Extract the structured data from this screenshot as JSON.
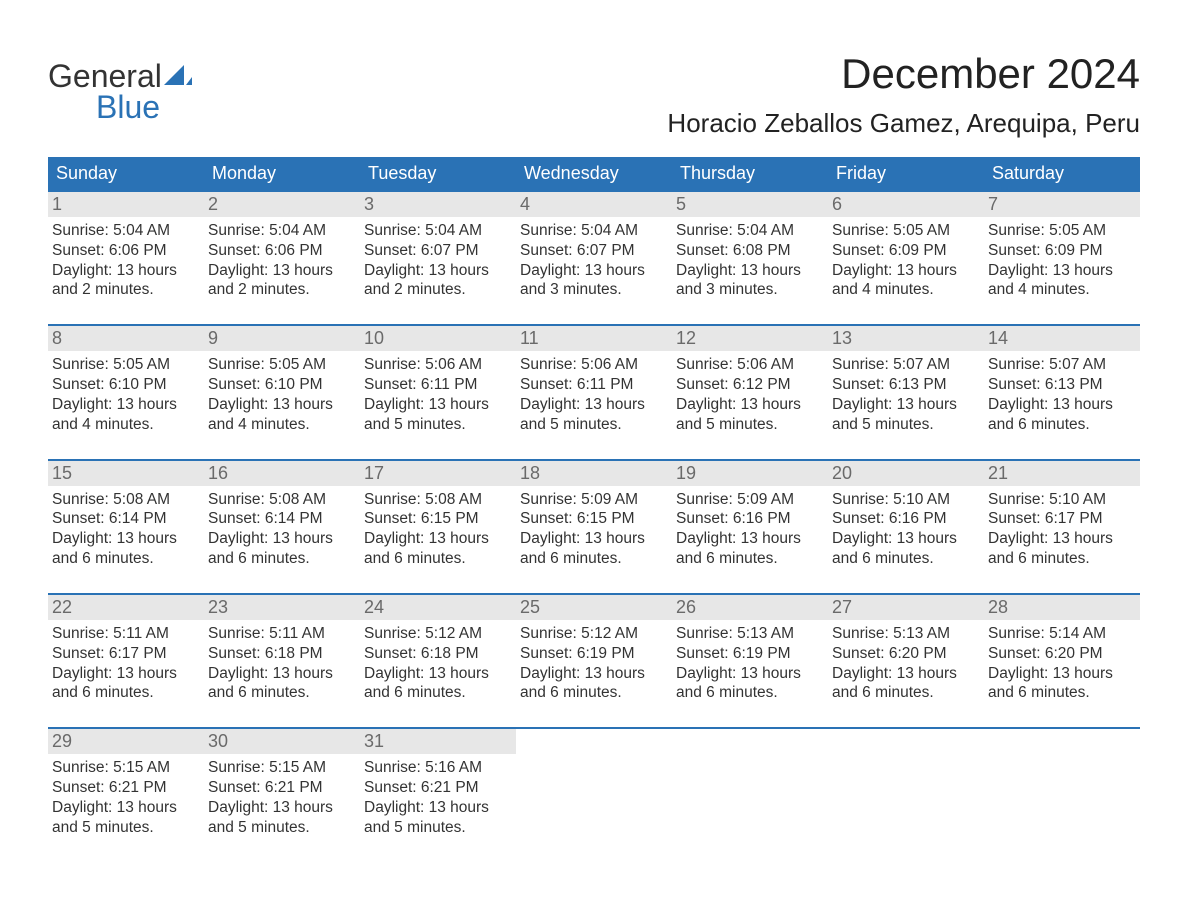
{
  "colors": {
    "header_bg": "#2a72b5",
    "header_text": "#ffffff",
    "daynum_bg": "#e7e7e7",
    "daynum_text": "#6a6a6a",
    "body_text": "#333333",
    "week_border": "#2a72b5",
    "logo_blue": "#2a72b5",
    "page_bg": "#ffffff"
  },
  "logo": {
    "word1": "General",
    "word2": "Blue"
  },
  "title": "December 2024",
  "location": "Horacio Zeballos Gamez, Arequipa, Peru",
  "day_headers": [
    "Sunday",
    "Monday",
    "Tuesday",
    "Wednesday",
    "Thursday",
    "Friday",
    "Saturday"
  ],
  "typography": {
    "title_fontsize": 42,
    "location_fontsize": 26,
    "dow_fontsize": 18,
    "daynum_fontsize": 18,
    "body_fontsize": 15.5
  },
  "weeks": [
    [
      {
        "num": "1",
        "sunrise": "Sunrise: 5:04 AM",
        "sunset": "Sunset: 6:06 PM",
        "dl1": "Daylight: 13 hours",
        "dl2": "and 2 minutes."
      },
      {
        "num": "2",
        "sunrise": "Sunrise: 5:04 AM",
        "sunset": "Sunset: 6:06 PM",
        "dl1": "Daylight: 13 hours",
        "dl2": "and 2 minutes."
      },
      {
        "num": "3",
        "sunrise": "Sunrise: 5:04 AM",
        "sunset": "Sunset: 6:07 PM",
        "dl1": "Daylight: 13 hours",
        "dl2": "and 2 minutes."
      },
      {
        "num": "4",
        "sunrise": "Sunrise: 5:04 AM",
        "sunset": "Sunset: 6:07 PM",
        "dl1": "Daylight: 13 hours",
        "dl2": "and 3 minutes."
      },
      {
        "num": "5",
        "sunrise": "Sunrise: 5:04 AM",
        "sunset": "Sunset: 6:08 PM",
        "dl1": "Daylight: 13 hours",
        "dl2": "and 3 minutes."
      },
      {
        "num": "6",
        "sunrise": "Sunrise: 5:05 AM",
        "sunset": "Sunset: 6:09 PM",
        "dl1": "Daylight: 13 hours",
        "dl2": "and 4 minutes."
      },
      {
        "num": "7",
        "sunrise": "Sunrise: 5:05 AM",
        "sunset": "Sunset: 6:09 PM",
        "dl1": "Daylight: 13 hours",
        "dl2": "and 4 minutes."
      }
    ],
    [
      {
        "num": "8",
        "sunrise": "Sunrise: 5:05 AM",
        "sunset": "Sunset: 6:10 PM",
        "dl1": "Daylight: 13 hours",
        "dl2": "and 4 minutes."
      },
      {
        "num": "9",
        "sunrise": "Sunrise: 5:05 AM",
        "sunset": "Sunset: 6:10 PM",
        "dl1": "Daylight: 13 hours",
        "dl2": "and 4 minutes."
      },
      {
        "num": "10",
        "sunrise": "Sunrise: 5:06 AM",
        "sunset": "Sunset: 6:11 PM",
        "dl1": "Daylight: 13 hours",
        "dl2": "and 5 minutes."
      },
      {
        "num": "11",
        "sunrise": "Sunrise: 5:06 AM",
        "sunset": "Sunset: 6:11 PM",
        "dl1": "Daylight: 13 hours",
        "dl2": "and 5 minutes."
      },
      {
        "num": "12",
        "sunrise": "Sunrise: 5:06 AM",
        "sunset": "Sunset: 6:12 PM",
        "dl1": "Daylight: 13 hours",
        "dl2": "and 5 minutes."
      },
      {
        "num": "13",
        "sunrise": "Sunrise: 5:07 AM",
        "sunset": "Sunset: 6:13 PM",
        "dl1": "Daylight: 13 hours",
        "dl2": "and 5 minutes."
      },
      {
        "num": "14",
        "sunrise": "Sunrise: 5:07 AM",
        "sunset": "Sunset: 6:13 PM",
        "dl1": "Daylight: 13 hours",
        "dl2": "and 6 minutes."
      }
    ],
    [
      {
        "num": "15",
        "sunrise": "Sunrise: 5:08 AM",
        "sunset": "Sunset: 6:14 PM",
        "dl1": "Daylight: 13 hours",
        "dl2": "and 6 minutes."
      },
      {
        "num": "16",
        "sunrise": "Sunrise: 5:08 AM",
        "sunset": "Sunset: 6:14 PM",
        "dl1": "Daylight: 13 hours",
        "dl2": "and 6 minutes."
      },
      {
        "num": "17",
        "sunrise": "Sunrise: 5:08 AM",
        "sunset": "Sunset: 6:15 PM",
        "dl1": "Daylight: 13 hours",
        "dl2": "and 6 minutes."
      },
      {
        "num": "18",
        "sunrise": "Sunrise: 5:09 AM",
        "sunset": "Sunset: 6:15 PM",
        "dl1": "Daylight: 13 hours",
        "dl2": "and 6 minutes."
      },
      {
        "num": "19",
        "sunrise": "Sunrise: 5:09 AM",
        "sunset": "Sunset: 6:16 PM",
        "dl1": "Daylight: 13 hours",
        "dl2": "and 6 minutes."
      },
      {
        "num": "20",
        "sunrise": "Sunrise: 5:10 AM",
        "sunset": "Sunset: 6:16 PM",
        "dl1": "Daylight: 13 hours",
        "dl2": "and 6 minutes."
      },
      {
        "num": "21",
        "sunrise": "Sunrise: 5:10 AM",
        "sunset": "Sunset: 6:17 PM",
        "dl1": "Daylight: 13 hours",
        "dl2": "and 6 minutes."
      }
    ],
    [
      {
        "num": "22",
        "sunrise": "Sunrise: 5:11 AM",
        "sunset": "Sunset: 6:17 PM",
        "dl1": "Daylight: 13 hours",
        "dl2": "and 6 minutes."
      },
      {
        "num": "23",
        "sunrise": "Sunrise: 5:11 AM",
        "sunset": "Sunset: 6:18 PM",
        "dl1": "Daylight: 13 hours",
        "dl2": "and 6 minutes."
      },
      {
        "num": "24",
        "sunrise": "Sunrise: 5:12 AM",
        "sunset": "Sunset: 6:18 PM",
        "dl1": "Daylight: 13 hours",
        "dl2": "and 6 minutes."
      },
      {
        "num": "25",
        "sunrise": "Sunrise: 5:12 AM",
        "sunset": "Sunset: 6:19 PM",
        "dl1": "Daylight: 13 hours",
        "dl2": "and 6 minutes."
      },
      {
        "num": "26",
        "sunrise": "Sunrise: 5:13 AM",
        "sunset": "Sunset: 6:19 PM",
        "dl1": "Daylight: 13 hours",
        "dl2": "and 6 minutes."
      },
      {
        "num": "27",
        "sunrise": "Sunrise: 5:13 AM",
        "sunset": "Sunset: 6:20 PM",
        "dl1": "Daylight: 13 hours",
        "dl2": "and 6 minutes."
      },
      {
        "num": "28",
        "sunrise": "Sunrise: 5:14 AM",
        "sunset": "Sunset: 6:20 PM",
        "dl1": "Daylight: 13 hours",
        "dl2": "and 6 minutes."
      }
    ],
    [
      {
        "num": "29",
        "sunrise": "Sunrise: 5:15 AM",
        "sunset": "Sunset: 6:21 PM",
        "dl1": "Daylight: 13 hours",
        "dl2": "and 5 minutes."
      },
      {
        "num": "30",
        "sunrise": "Sunrise: 5:15 AM",
        "sunset": "Sunset: 6:21 PM",
        "dl1": "Daylight: 13 hours",
        "dl2": "and 5 minutes."
      },
      {
        "num": "31",
        "sunrise": "Sunrise: 5:16 AM",
        "sunset": "Sunset: 6:21 PM",
        "dl1": "Daylight: 13 hours",
        "dl2": "and 5 minutes."
      },
      null,
      null,
      null,
      null
    ]
  ]
}
